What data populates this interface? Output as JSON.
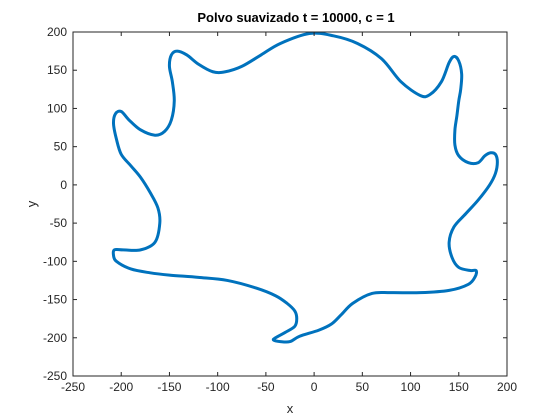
{
  "chart_data": {
    "type": "line",
    "title": "Polvo suavizado t = 10000, c = 1",
    "xlabel": "x",
    "ylabel": "y",
    "xlim": [
      -250,
      200
    ],
    "ylim": [
      -250,
      200
    ],
    "xticks": [
      -250,
      -200,
      -150,
      -100,
      -50,
      0,
      50,
      100,
      150,
      200
    ],
    "yticks": [
      -250,
      -200,
      -150,
      -100,
      -50,
      0,
      50,
      100,
      150,
      200
    ],
    "xtick_labels": [
      "-250",
      "-200",
      "-150",
      "-100",
      "-50",
      "0",
      "50",
      "100",
      "150",
      "200"
    ],
    "ytick_labels": [
      "-250",
      "-200",
      "-150",
      "-100",
      "-50",
      "0",
      "50",
      "100",
      "150",
      "200"
    ],
    "grid": false,
    "closed": true,
    "series": [
      {
        "color": "#0072BD",
        "points": [
          [
            -5,
            198
          ],
          [
            20,
            195
          ],
          [
            45,
            185
          ],
          [
            70,
            165
          ],
          [
            90,
            135
          ],
          [
            110,
            117
          ],
          [
            120,
            118
          ],
          [
            132,
            135
          ],
          [
            140,
            160
          ],
          [
            145,
            168
          ],
          [
            150,
            162
          ],
          [
            153,
            145
          ],
          [
            152,
            125
          ],
          [
            150,
            110
          ],
          [
            148,
            90
          ],
          [
            146,
            72
          ],
          [
            146,
            52
          ],
          [
            150,
            38
          ],
          [
            160,
            29
          ],
          [
            170,
            29
          ],
          [
            177,
            38
          ],
          [
            183,
            42
          ],
          [
            188,
            40
          ],
          [
            190,
            30
          ],
          [
            188,
            15
          ],
          [
            182,
            0
          ],
          [
            170,
            -20
          ],
          [
            157,
            -38
          ],
          [
            145,
            -55
          ],
          [
            140,
            -75
          ],
          [
            143,
            -95
          ],
          [
            150,
            -108
          ],
          [
            162,
            -112
          ],
          [
            168,
            -112
          ],
          [
            167,
            -120
          ],
          [
            160,
            -130
          ],
          [
            140,
            -138
          ],
          [
            110,
            -141
          ],
          [
            80,
            -141
          ],
          [
            60,
            -142
          ],
          [
            40,
            -155
          ],
          [
            28,
            -170
          ],
          [
            18,
            -182
          ],
          [
            5,
            -190
          ],
          [
            -15,
            -198
          ],
          [
            -25,
            -205
          ],
          [
            -35,
            -205
          ],
          [
            -42,
            -203
          ],
          [
            -40,
            -200
          ],
          [
            -30,
            -193
          ],
          [
            -20,
            -185
          ],
          [
            -18,
            -175
          ],
          [
            -20,
            -165
          ],
          [
            -28,
            -155
          ],
          [
            -40,
            -145
          ],
          [
            -60,
            -135
          ],
          [
            -90,
            -125
          ],
          [
            -120,
            -121
          ],
          [
            -150,
            -118
          ],
          [
            -170,
            -115
          ],
          [
            -190,
            -110
          ],
          [
            -205,
            -100
          ],
          [
            -208,
            -92
          ],
          [
            -207,
            -85
          ],
          [
            -198,
            -85
          ],
          [
            -180,
            -85
          ],
          [
            -165,
            -75
          ],
          [
            -160,
            -50
          ],
          [
            -162,
            -30
          ],
          [
            -170,
            -10
          ],
          [
            -180,
            10
          ],
          [
            -190,
            25
          ],
          [
            -200,
            40
          ],
          [
            -205,
            60
          ],
          [
            -208,
            80
          ],
          [
            -206,
            93
          ],
          [
            -200,
            96
          ],
          [
            -192,
            85
          ],
          [
            -180,
            72
          ],
          [
            -165,
            65
          ],
          [
            -155,
            70
          ],
          [
            -148,
            85
          ],
          [
            -145,
            110
          ],
          [
            -147,
            135
          ],
          [
            -150,
            155
          ],
          [
            -148,
            170
          ],
          [
            -142,
            175
          ],
          [
            -132,
            170
          ],
          [
            -120,
            158
          ],
          [
            -105,
            148
          ],
          [
            -92,
            148
          ],
          [
            -75,
            155
          ],
          [
            -55,
            170
          ],
          [
            -35,
            185
          ]
        ]
      }
    ]
  }
}
